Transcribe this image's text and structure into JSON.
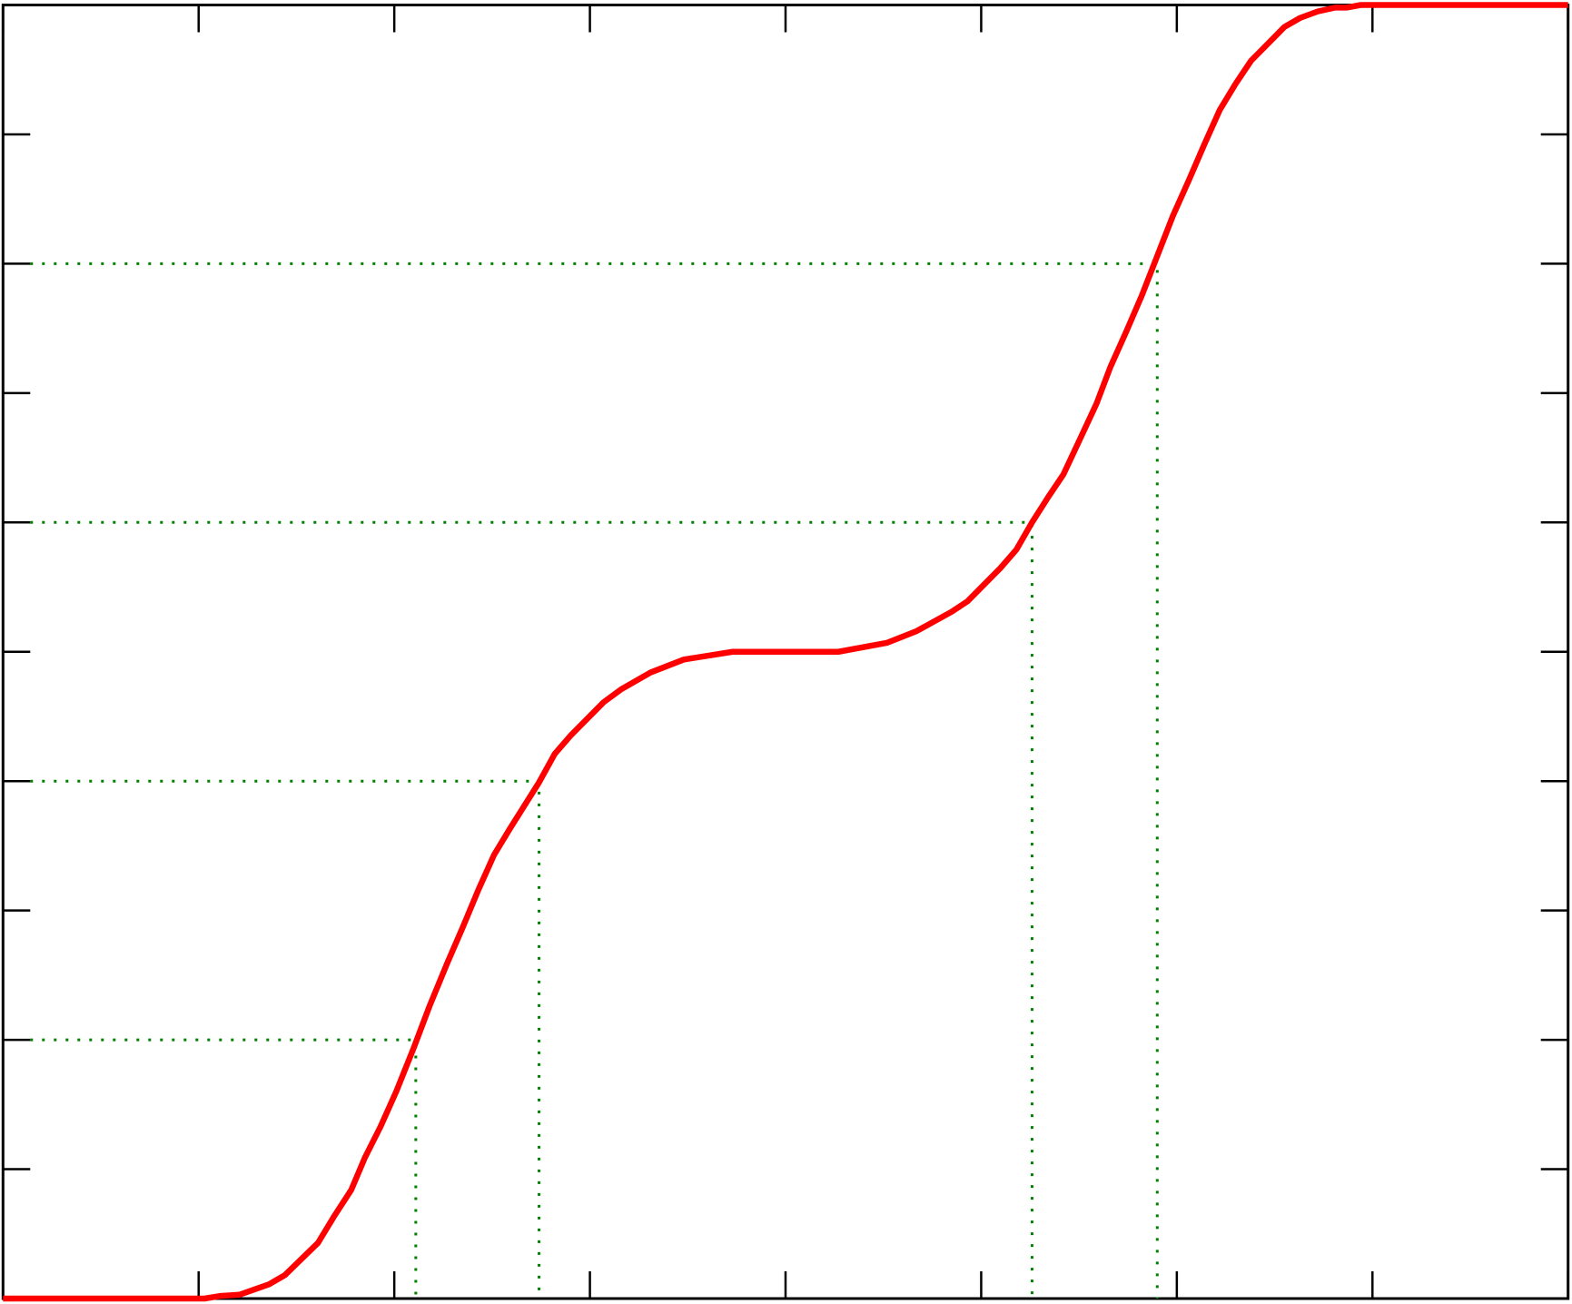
{
  "chart_data": {
    "type": "line",
    "x": [
      0,
      1.03,
      1.11,
      1.21,
      1.36,
      1.44,
      1.61,
      1.69,
      1.78,
      1.85,
      1.93,
      2.01,
      2.1,
      2.18,
      2.27,
      2.35,
      2.43,
      2.51,
      2.59,
      2.74,
      2.82,
      2.9,
      3.07,
      3.16,
      3.31,
      3.48,
      3.73,
      4.27,
      4.52,
      4.67,
      4.85,
      4.93,
      5.1,
      5.18,
      5.26,
      5.34,
      5.42,
      5.51,
      5.59,
      5.66,
      5.74,
      5.82,
      5.9,
      5.98,
      6.06,
      6.14,
      6.22,
      6.3,
      6.38,
      6.55,
      6.63,
      6.72,
      6.81,
      6.87,
      6.94,
      8
    ],
    "series": [
      {
        "color": "#ff0000",
        "values": [
          0,
          0,
          0.002,
          0.003,
          0.011,
          0.018,
          0.043,
          0.063,
          0.084,
          0.109,
          0.133,
          0.16,
          0.194,
          0.226,
          0.259,
          0.287,
          0.316,
          0.343,
          0.363,
          0.399,
          0.421,
          0.435,
          0.461,
          0.471,
          0.484,
          0.494,
          0.5,
          0.5,
          0.507,
          0.516,
          0.531,
          0.539,
          0.565,
          0.579,
          0.6,
          0.619,
          0.637,
          0.666,
          0.692,
          0.72,
          0.747,
          0.775,
          0.806,
          0.837,
          0.864,
          0.892,
          0.919,
          0.939,
          0.957,
          0.983,
          0.99,
          0.995,
          0.998,
          0.998,
          1,
          1
        ]
      }
    ],
    "reference_lines": {
      "color": "#008000",
      "points": [
        {
          "x": 2.11,
          "y": 0.2
        },
        {
          "x": 2.74,
          "y": 0.4
        },
        {
          "x": 5.26,
          "y": 0.6
        },
        {
          "x": 5.9,
          "y": 0.8
        }
      ]
    },
    "xlim": [
      0,
      8
    ],
    "xticks": [
      0,
      1,
      2,
      3,
      4,
      5,
      6,
      7,
      8
    ],
    "ylim": [
      0,
      1
    ],
    "yticks": [
      0,
      0.1,
      0.2,
      0.3,
      0.4,
      0.5,
      0.6,
      0.7,
      0.8,
      0.9,
      1
    ]
  }
}
